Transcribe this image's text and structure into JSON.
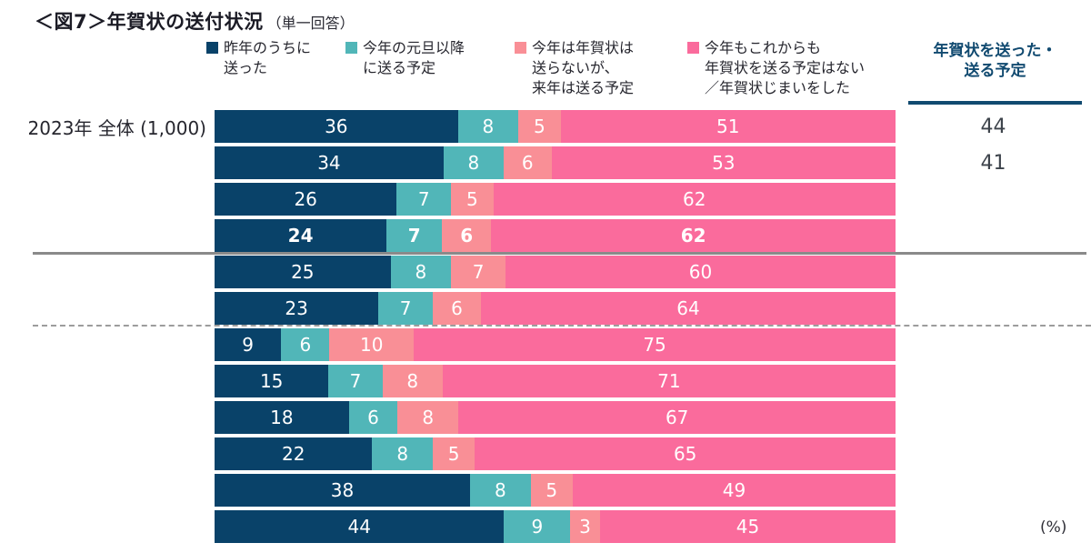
{
  "title": {
    "main": "＜図7＞年賀状の送付状況",
    "sub": "（単一回答）"
  },
  "legend": [
    {
      "label": "昨年のうちに\n送った",
      "color": "#094269"
    },
    {
      "label": "今年の元旦以降\nに送る予定",
      "color": "#51b6b8"
    },
    {
      "label": "今年は年賀状は\n送らないが、\n来年は送る予定",
      "color": "#f98f96"
    },
    {
      "label": "今年もこれからも\n年賀状を送る予定はない\n／年賀状じまいをした",
      "color": "#fa6b9c"
    }
  ],
  "right_column": {
    "header": "年賀状を送った・\n送る予定"
  },
  "unit_label": "(%)",
  "chart_data": {
    "type": "bar",
    "stacked": true,
    "orientation": "horizontal",
    "value_unit": "%",
    "xlim": [
      0,
      100
    ],
    "series": [
      {
        "name": "昨年のうちに送った",
        "color": "#094269"
      },
      {
        "name": "今年の元旦以降に送る予定",
        "color": "#51b6b8"
      },
      {
        "name": "今年は年賀状は送らないが、来年は送る予定",
        "color": "#f98f96"
      },
      {
        "name": "今年もこれからも年賀状を送る予定はない／年賀状じまいをした",
        "color": "#fa6b9c"
      }
    ],
    "rows": [
      {
        "label": "2023年 全体 (1,000)",
        "values": [
          36,
          8,
          5,
          51
        ],
        "sent_total": "44",
        "bold": false
      },
      {
        "label": "",
        "values": [
          34,
          8,
          6,
          53
        ],
        "sent_total": "41",
        "bold": false
      },
      {
        "label": "",
        "values": [
          26,
          7,
          5,
          62
        ],
        "sent_total": "",
        "bold": false
      },
      {
        "label": "",
        "values": [
          24,
          7,
          6,
          62
        ],
        "sent_total": "",
        "bold": true
      },
      {
        "label": "",
        "values": [
          25,
          8,
          7,
          60
        ],
        "sent_total": "",
        "bold": false
      },
      {
        "label": "",
        "values": [
          23,
          7,
          6,
          64
        ],
        "sent_total": "",
        "bold": false
      },
      {
        "label": "",
        "values": [
          9,
          6,
          10,
          75
        ],
        "sent_total": "",
        "bold": false
      },
      {
        "label": "",
        "values": [
          15,
          7,
          8,
          71
        ],
        "sent_total": "",
        "bold": false
      },
      {
        "label": "",
        "values": [
          18,
          6,
          8,
          67
        ],
        "sent_total": "",
        "bold": false
      },
      {
        "label": "",
        "values": [
          22,
          8,
          5,
          65
        ],
        "sent_total": "",
        "bold": false
      },
      {
        "label": "",
        "values": [
          38,
          8,
          5,
          49
        ],
        "sent_total": "",
        "bold": false
      },
      {
        "label": "",
        "values": [
          44,
          9,
          3,
          45
        ],
        "sent_total": "",
        "bold": false
      }
    ],
    "separators": [
      {
        "after_row_index": 3,
        "style": "solid"
      },
      {
        "after_row_index": 5,
        "style": "dashed"
      }
    ]
  }
}
